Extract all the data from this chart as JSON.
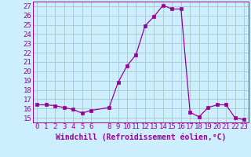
{
  "x": [
    0,
    1,
    2,
    3,
    4,
    5,
    6,
    8,
    9,
    10,
    11,
    12,
    13,
    14,
    15,
    16,
    17,
    18,
    19,
    20,
    21,
    22,
    23
  ],
  "y": [
    16.4,
    16.4,
    16.3,
    16.1,
    15.9,
    15.5,
    15.8,
    16.1,
    18.8,
    20.6,
    21.8,
    24.9,
    25.9,
    27.1,
    26.7,
    26.7,
    15.6,
    15.1,
    16.1,
    16.4,
    16.4,
    15.0,
    14.8
  ],
  "line_color": "#990099",
  "marker_color": "#990099",
  "bg_color": "#cceeff",
  "grid_color": "#aacccc",
  "axis_color": "#990099",
  "tick_color": "#990099",
  "xlabel": "Windchill (Refroidissement éolien,°C)",
  "ylim_min": 14.5,
  "ylim_max": 27.5,
  "yticks": [
    15,
    16,
    17,
    18,
    19,
    20,
    21,
    22,
    23,
    24,
    25,
    26,
    27
  ],
  "xticks": [
    0,
    1,
    2,
    3,
    4,
    5,
    6,
    8,
    9,
    10,
    11,
    12,
    13,
    14,
    15,
    16,
    17,
    18,
    19,
    20,
    21,
    22,
    23
  ],
  "xlim_min": -0.5,
  "xlim_max": 23.5,
  "font_size": 6.5,
  "label_font_size": 7
}
